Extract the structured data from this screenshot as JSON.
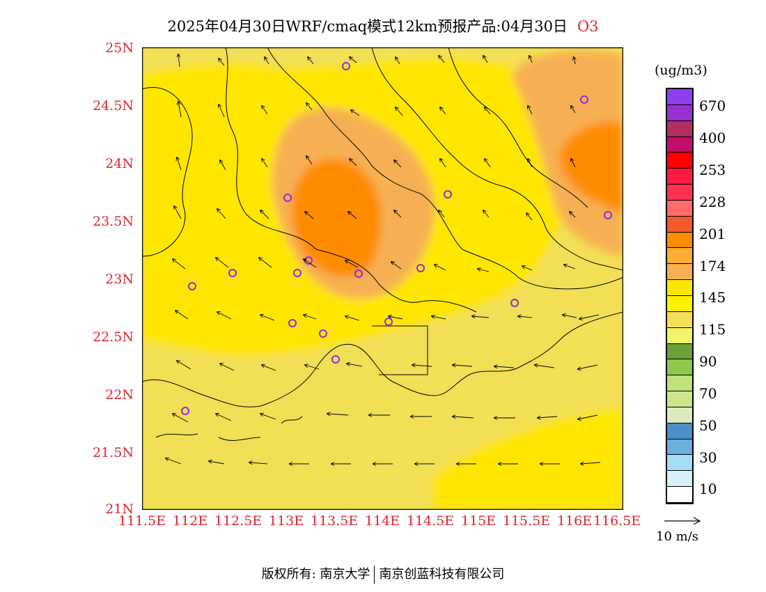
{
  "title": {
    "main": "2025年04月30日WRF/cmaq模式12km预报产品:04月30日",
    "species": "O3"
  },
  "map": {
    "lat_labels": [
      "25N",
      "24.5N",
      "24N",
      "23.5N",
      "23N",
      "22.5N",
      "22N",
      "21.5N",
      "21N"
    ],
    "lon_labels": [
      "111.5E",
      "112E",
      "112.5E",
      "113E",
      "113.5E",
      "114E",
      "114.5E",
      "115E",
      "115.5E",
      "116E",
      "116.5E"
    ],
    "background_color": "#f3df55"
  },
  "legend": {
    "unit": "(ug/m3)",
    "colors": [
      "#8f3ff0",
      "#9a2fd4",
      "#b03060",
      "#c0106a",
      "#ff0000",
      "#ff1a40",
      "#ff3050",
      "#ff6b6b",
      "#f25a2a",
      "#ff8c00",
      "#ffad33",
      "#f6b052",
      "#ffe600",
      "#fff200",
      "#f3df55",
      "#eff566",
      "#6ea03a",
      "#8ec84a",
      "#bfe07a",
      "#cce58a",
      "#dde9c0",
      "#4a8fc8",
      "#6ab0e0",
      "#a6dcf5",
      "#d9f0fb",
      "#ffffff"
    ],
    "labels": [
      "670",
      "400",
      "253",
      "228",
      "201",
      "174",
      "145",
      "115",
      "90",
      "70",
      "50",
      "30",
      "10"
    ]
  },
  "wind_reference": {
    "label": "10 m/s"
  },
  "copyright": {
    "prefix": "版权所有:",
    "org1": "南京大学",
    "org2": "南京创蓝科技有限公司"
  }
}
